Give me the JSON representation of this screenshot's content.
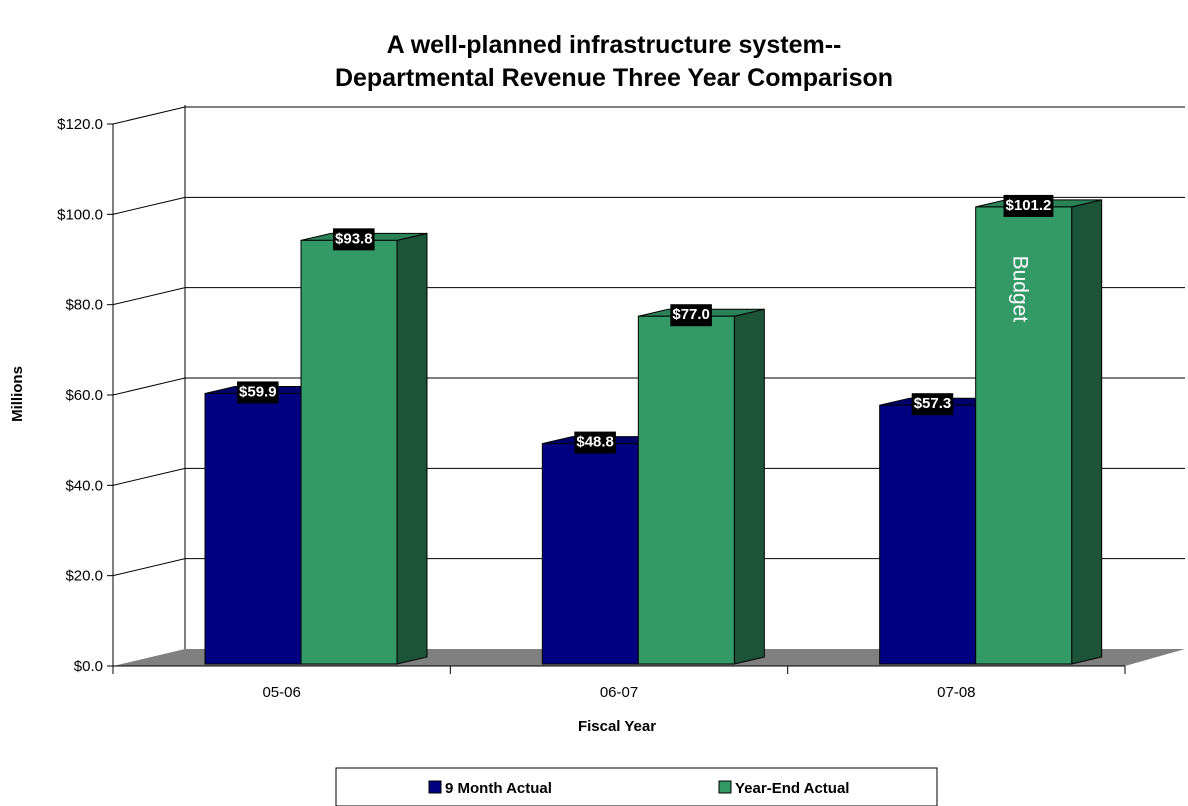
{
  "chart_data": {
    "type": "bar",
    "title": "A well-planned infrastructure system--",
    "subtitle": "Departmental Revenue Three Year Comparison",
    "xlabel": "Fiscal Year",
    "ylabel": "Millions",
    "categories": [
      "05-06",
      "06-07",
      "07-08"
    ],
    "series": [
      {
        "name": "9 Month Actual",
        "values": [
          59.9,
          48.8,
          57.3
        ],
        "labels": [
          "$59.9",
          "$48.8",
          "$57.3"
        ],
        "color": "#000080"
      },
      {
        "name": "Year-End Actual",
        "values": [
          93.8,
          77.0,
          101.2
        ],
        "labels": [
          "$93.8",
          "$77.0",
          "$101.2"
        ],
        "color": "#339966"
      }
    ],
    "ylim": [
      0,
      120
    ],
    "yticks": [
      0,
      20,
      40,
      60,
      80,
      100,
      120
    ],
    "ytick_labels": [
      "$0.0",
      "$20.0",
      "$40.0",
      "$60.0",
      "$80.0",
      "$100.0",
      "$120.0"
    ],
    "annotation": {
      "text": "Budget",
      "category": "07-08",
      "series": "Year-End Actual"
    },
    "grid": true,
    "legend_position": "bottom",
    "style": "3d-clustered-column"
  }
}
